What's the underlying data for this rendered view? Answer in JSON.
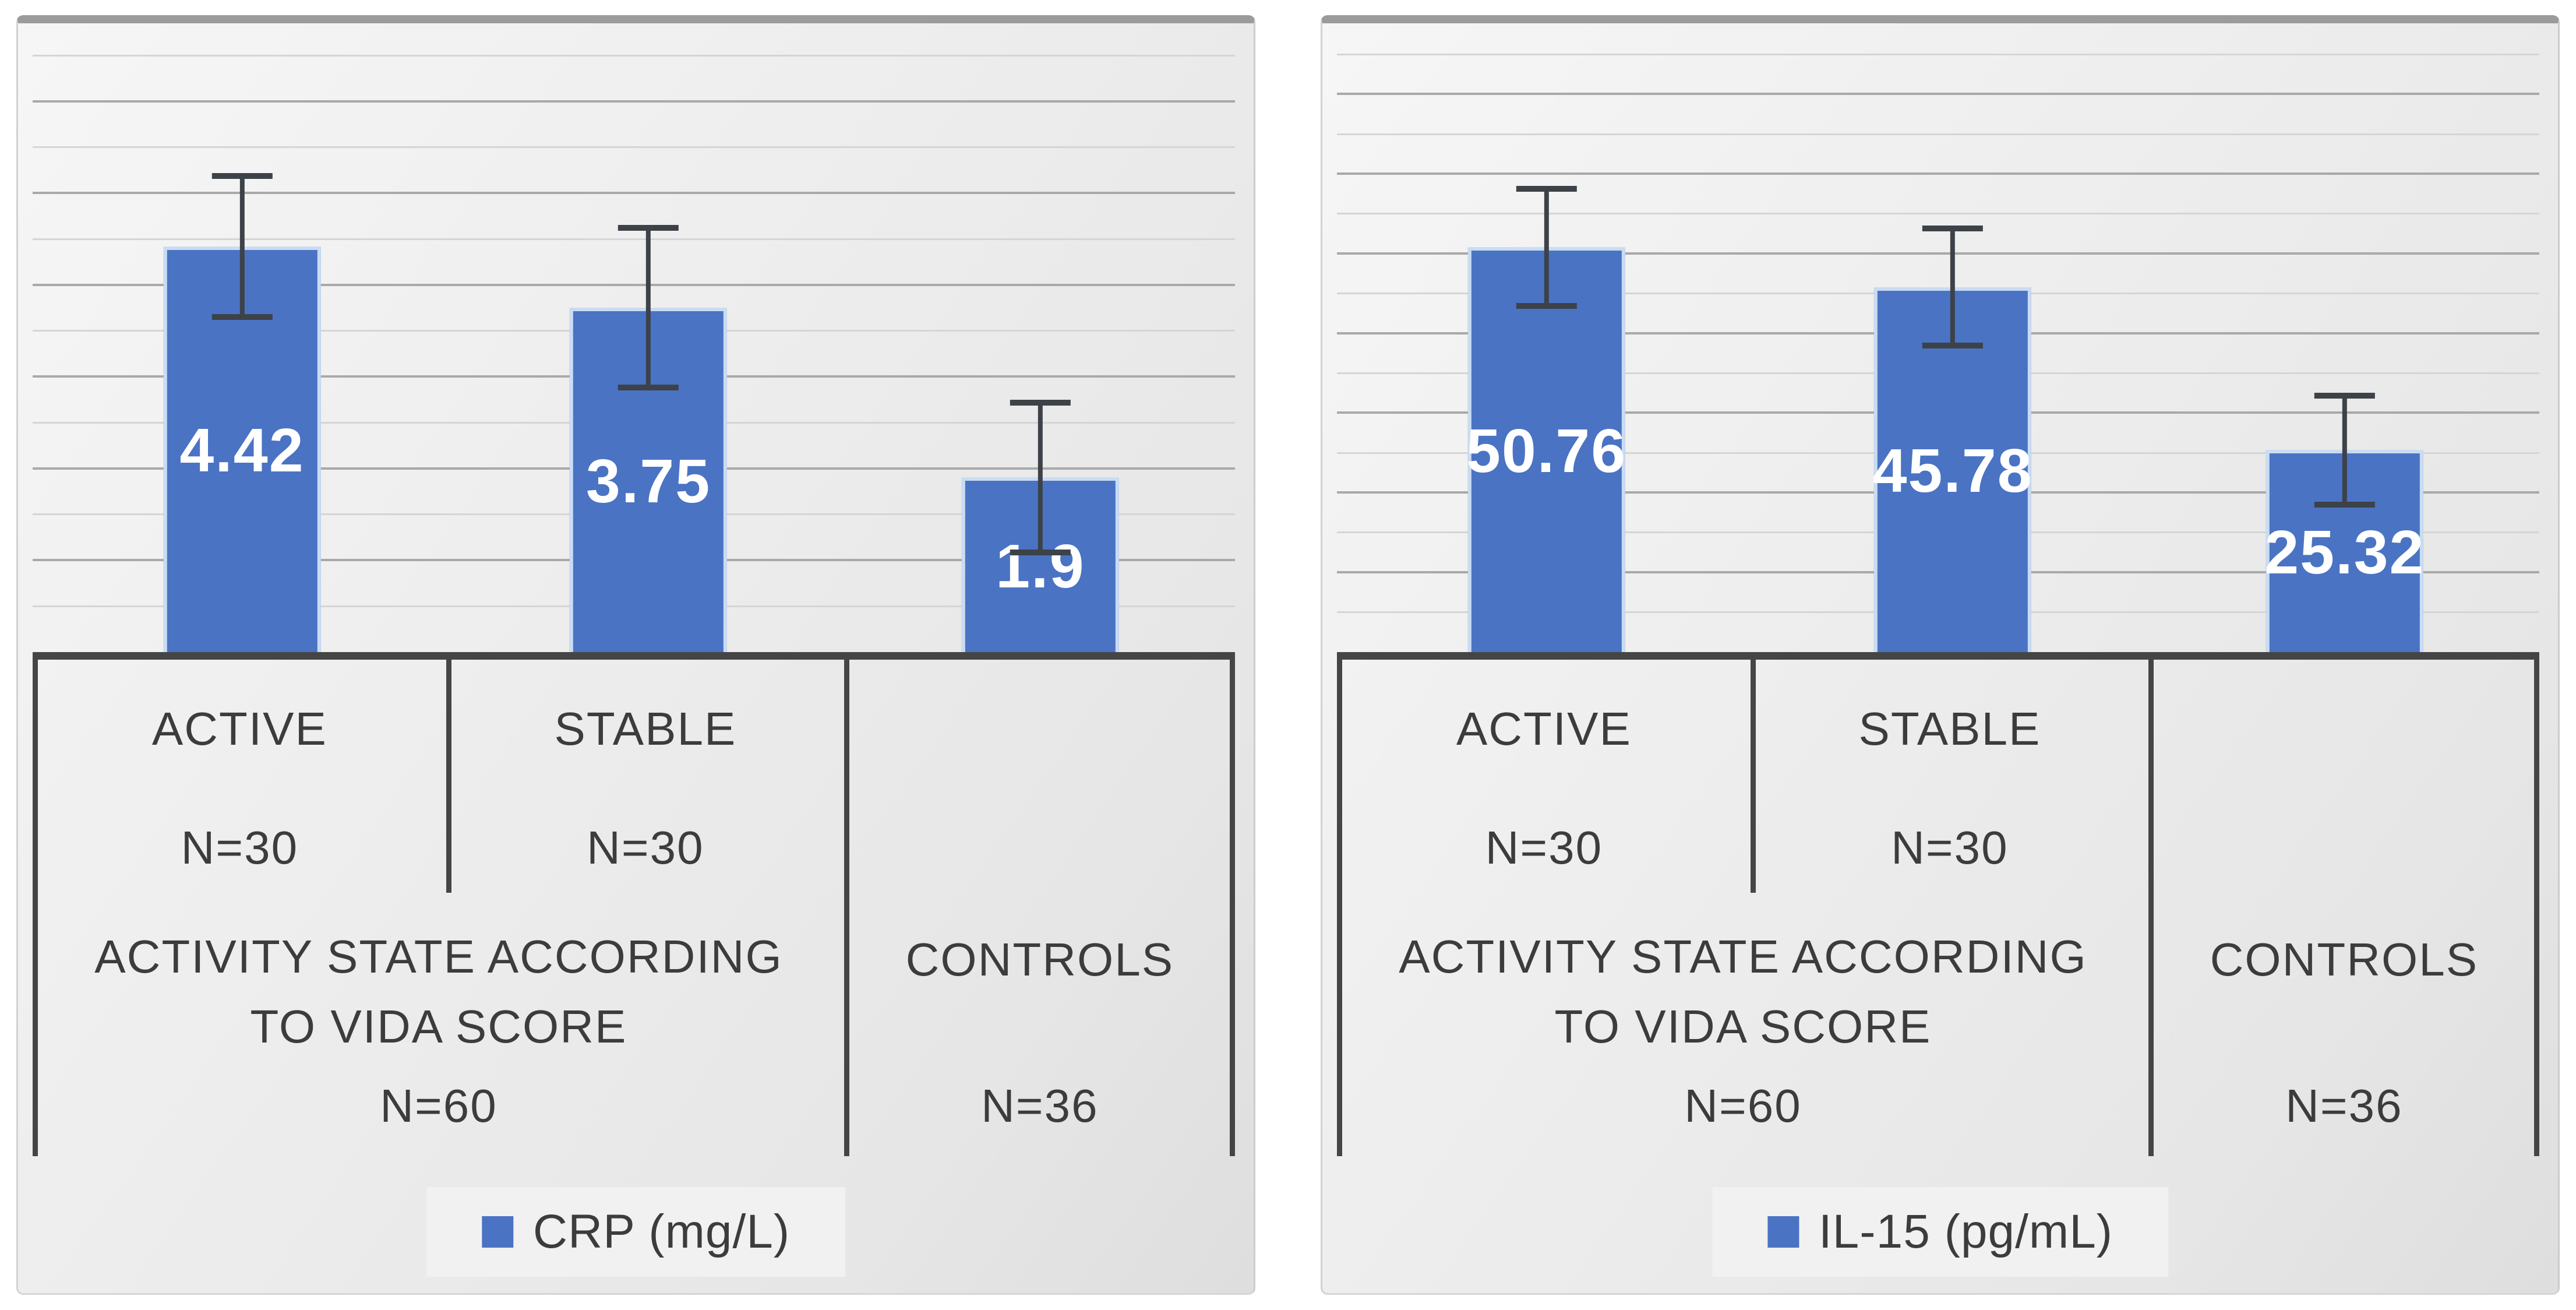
{
  "chart_data": [
    {
      "type": "bar",
      "title": "",
      "legend_label": "CRP (mg/L)",
      "legend_position": "bottom",
      "categories": [
        "ACTIVE",
        "STABLE",
        "CONTROLS"
      ],
      "values": [
        4.42,
        3.75,
        1.9
      ],
      "value_labels": [
        "4.42",
        "3.75",
        "1.9"
      ],
      "error_bars": [
        0.8,
        0.9,
        0.85
      ],
      "category_n": [
        "N=30",
        "N=30",
        "N=36"
      ],
      "group_axis": {
        "group_label": "ACTIVITY STATE ACCORDING TO VIDA SCORE",
        "group_n": "N=60",
        "controls_label": "CONTROLS",
        "controls_n": "N=36"
      },
      "ylim": [
        0,
        6.6
      ],
      "major_gridline_interval": 1,
      "minor_gridline_interval": 0.5,
      "grid": true,
      "bar_color": "#4A73C4",
      "data_label_color": "#FFFFFF"
    },
    {
      "type": "bar",
      "title": "",
      "legend_label": "IL-15 (pg/mL)",
      "legend_position": "bottom",
      "categories": [
        "ACTIVE",
        "STABLE",
        "CONTROLS"
      ],
      "values": [
        50.76,
        45.78,
        25.32
      ],
      "value_labels": [
        "50.76",
        "45.78",
        "25.32"
      ],
      "error_bars": [
        7.7,
        7.7,
        7.2
      ],
      "category_n": [
        "N=30",
        "N=30",
        "N=36"
      ],
      "group_axis": {
        "group_label": "ACTIVITY STATE ACCORDING TO VIDA SCORE",
        "group_n": "N=60",
        "controls_label": "CONTROLS",
        "controls_n": "N=36"
      },
      "ylim": [
        0,
        76
      ],
      "major_gridline_interval": 10,
      "minor_gridline_interval": 5,
      "grid": true,
      "bar_color": "#4A73C4",
      "data_label_color": "#FFFFFF"
    }
  ]
}
